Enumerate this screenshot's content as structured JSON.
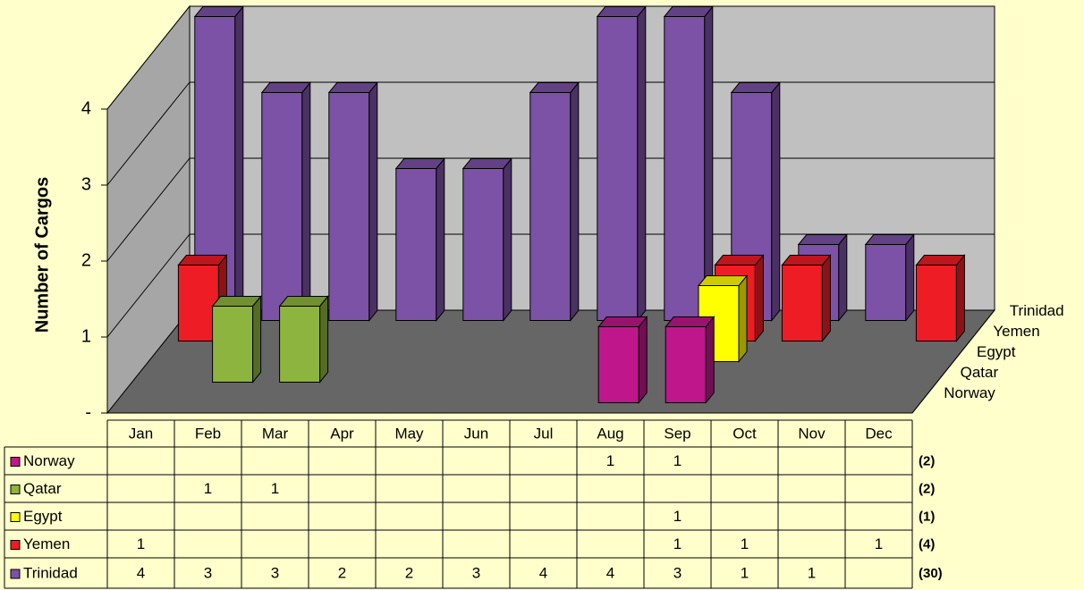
{
  "chart_data": {
    "type": "bar3d",
    "y_axis_label": "Number of Cargos",
    "categories": [
      "Jan",
      "Feb",
      "Mar",
      "Apr",
      "May",
      "Jun",
      "Jul",
      "Aug",
      "Sep",
      "Oct",
      "Nov",
      "Dec"
    ],
    "series": [
      {
        "name": "Norway",
        "color": "#c0168c",
        "values": [
          null,
          null,
          null,
          null,
          null,
          null,
          null,
          1,
          1,
          null,
          null,
          null
        ]
      },
      {
        "name": "Qatar",
        "color": "#8db43e",
        "values": [
          null,
          1,
          1,
          null,
          null,
          null,
          null,
          null,
          null,
          null,
          null,
          null
        ]
      },
      {
        "name": "Egypt",
        "color": "#ffff00",
        "values": [
          null,
          null,
          null,
          null,
          null,
          null,
          null,
          null,
          1,
          null,
          null,
          null
        ]
      },
      {
        "name": "Yemen",
        "color": "#ee1c24",
        "values": [
          1,
          null,
          null,
          null,
          null,
          null,
          null,
          null,
          1,
          1,
          null,
          1
        ]
      },
      {
        "name": "Trinidad",
        "color": "#7b52a5",
        "values": [
          4,
          3,
          3,
          2,
          2,
          3,
          4,
          4,
          3,
          1,
          1,
          null
        ]
      }
    ],
    "totals": [
      "(2)",
      "(2)",
      "(1)",
      "(4)",
      "(30)"
    ],
    "ylim": [
      0,
      4
    ],
    "yticks": [
      {
        "value": 0,
        "label": "-"
      },
      1,
      2,
      3,
      4
    ],
    "grid": true
  }
}
